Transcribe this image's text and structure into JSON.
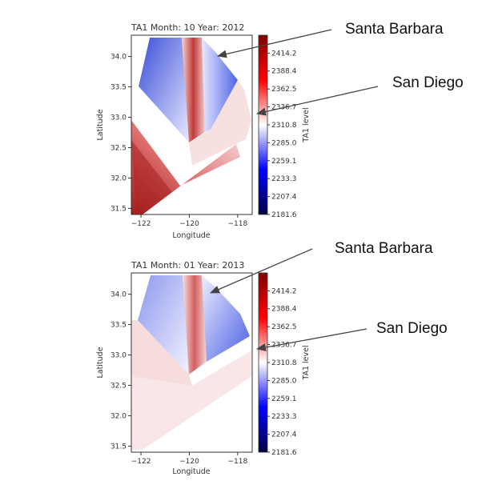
{
  "chart_data": [
    {
      "type": "heatmap",
      "title": "TA1 Month: 10 Year: 2012",
      "xlabel": "Longitude",
      "ylabel": "Latitude",
      "xlim": [
        -122.4,
        -117.4
      ],
      "ylim": [
        31.4,
        34.35
      ],
      "x_ticks": [
        -122,
        -120,
        -118
      ],
      "x_tick_labels": [
        "−122",
        "−120",
        "−118"
      ],
      "y_ticks": [
        31.5,
        32.0,
        32.5,
        33.0,
        33.5,
        34.0
      ],
      "y_tick_labels": [
        "31.5",
        "32.0",
        "32.5",
        "33.0",
        "33.5",
        "34.0"
      ],
      "colorbar": {
        "label": "TA1 level",
        "colormap": "seismic",
        "range": [
          2181.6,
          2440
        ],
        "ticks": [
          2414.2,
          2388.4,
          2362.5,
          2336.7,
          2310.8,
          2285.0,
          2259.1,
          2233.3,
          2207.4,
          2181.6
        ],
        "tick_labels": [
          "2414.2",
          "2388.4",
          "2362.5",
          "2336.7",
          "2310.8",
          "2285.0",
          "2259.1",
          "2233.3",
          "2207.4",
          "2181.6"
        ]
      },
      "sites": [
        {
          "name": "Santa Barbara",
          "lon": -119.05,
          "lat": 33.95
        },
        {
          "name": "San Diego",
          "lon": -117.4,
          "lat": 33.03
        }
      ]
    },
    {
      "type": "heatmap",
      "title": "TA1 Month: 01 Year: 2013",
      "xlabel": "Longitude",
      "ylabel": "Latitude",
      "xlim": [
        -122.4,
        -117.4
      ],
      "ylim": [
        31.4,
        34.35
      ],
      "x_ticks": [
        -122,
        -120,
        -118
      ],
      "x_tick_labels": [
        "−122",
        "−120",
        "−118"
      ],
      "y_ticks": [
        31.5,
        32.0,
        32.5,
        33.0,
        33.5,
        34.0
      ],
      "y_tick_labels": [
        "31.5",
        "32.0",
        "32.5",
        "33.0",
        "33.5",
        "34.0"
      ],
      "colorbar": {
        "label": "TA1 level",
        "colormap": "seismic",
        "range": [
          2181.6,
          2440
        ],
        "ticks": [
          2414.2,
          2388.4,
          2362.5,
          2336.7,
          2310.8,
          2285.0,
          2259.1,
          2233.3,
          2207.4,
          2181.6
        ],
        "tick_labels": [
          "2414.2",
          "2388.4",
          "2362.5",
          "2336.7",
          "2310.8",
          "2285.0",
          "2259.1",
          "2233.3",
          "2207.4",
          "2181.6"
        ]
      },
      "sites": [
        {
          "name": "Santa Barbara",
          "lon": -119.4,
          "lat": 33.95
        },
        {
          "name": "San Diego",
          "lon": -117.4,
          "lat": 33.03
        }
      ]
    }
  ],
  "annotations": {
    "santa_barbara": "Santa Barbara",
    "san_diego": "San Diego"
  }
}
